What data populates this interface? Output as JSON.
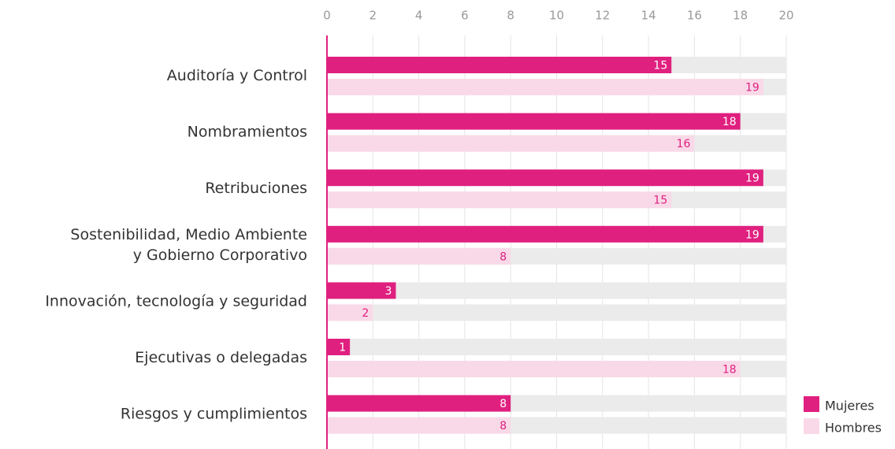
{
  "chart_data": {
    "type": "bar",
    "orientation": "horizontal",
    "categories": [
      "Auditoría y Control",
      "Nombramientos",
      "Retribuciones",
      "Sostenibilidad, Medio Ambiente\ny Gobierno Corporativo",
      "Innovación, tecnología y seguridad",
      "Ejecutivas o delegadas",
      "Riesgos y cumplimientos"
    ],
    "series": [
      {
        "name": "Mujeres",
        "color": "#e0207f",
        "values": [
          15,
          18,
          19,
          19,
          3,
          1,
          8
        ]
      },
      {
        "name": "Hombres",
        "color": "#f9d9e8",
        "values": [
          19,
          16,
          15,
          8,
          2,
          18,
          8
        ]
      }
    ],
    "xlim": [
      0,
      20
    ],
    "xticks": [
      0,
      2,
      4,
      6,
      8,
      10,
      12,
      14,
      16,
      18,
      20
    ],
    "grid": true,
    "legend": "bottom-right"
  }
}
